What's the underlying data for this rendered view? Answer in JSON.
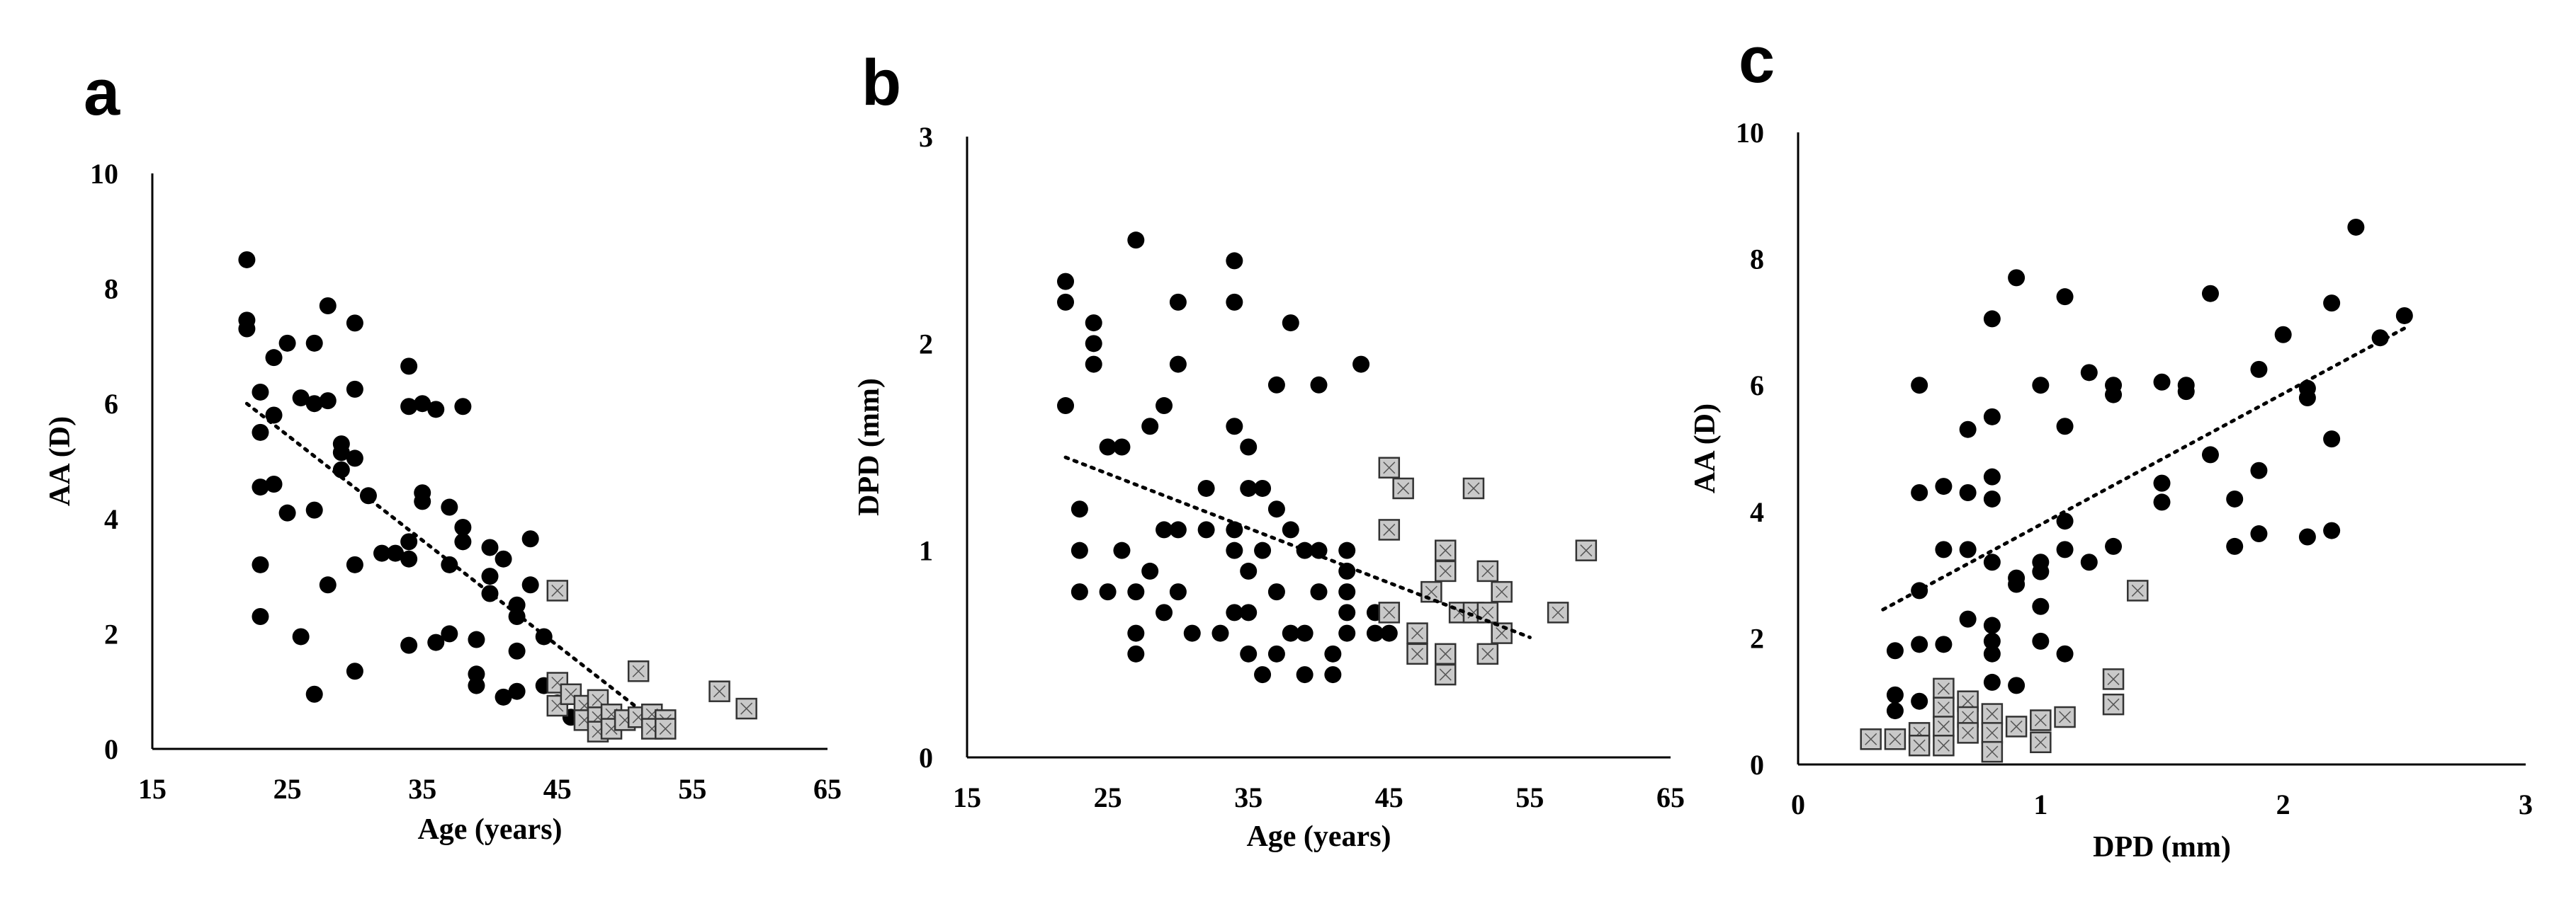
{
  "chart_data": [
    {
      "type": "scatter",
      "panel": "a",
      "xlabel": "Age (years)",
      "ylabel": "AA (D)",
      "xlim": [
        15,
        65
      ],
      "ylim": [
        0,
        10
      ],
      "xticks": [
        15,
        25,
        35,
        45,
        55,
        65
      ],
      "yticks": [
        0,
        2,
        4,
        6,
        8,
        10
      ],
      "series": [
        {
          "name": "circles",
          "marker": "circle",
          "points": [
            [
              22,
              8.5
            ],
            [
              22,
              7.45
            ],
            [
              22,
              7.3
            ],
            [
              23,
              6.2
            ],
            [
              23,
              5.5
            ],
            [
              23,
              4.55
            ],
            [
              23,
              3.2
            ],
            [
              23,
              2.3
            ],
            [
              24,
              6.8
            ],
            [
              24,
              5.8
            ],
            [
              24,
              4.6
            ],
            [
              25,
              7.05
            ],
            [
              25,
              4.1
            ],
            [
              26,
              6.1
            ],
            [
              26,
              1.95
            ],
            [
              27,
              7.05
            ],
            [
              27,
              6.0
            ],
            [
              27,
              4.15
            ],
            [
              27,
              0.95
            ],
            [
              28,
              7.7
            ],
            [
              28,
              6.05
            ],
            [
              28,
              2.85
            ],
            [
              29,
              5.3
            ],
            [
              29,
              5.15
            ],
            [
              29,
              4.85
            ],
            [
              30,
              7.4
            ],
            [
              30,
              6.25
            ],
            [
              30,
              5.05
            ],
            [
              30,
              3.2
            ],
            [
              30,
              1.35
            ],
            [
              31,
              4.4
            ],
            [
              32,
              3.4
            ],
            [
              33,
              3.4
            ],
            [
              34,
              6.65
            ],
            [
              34,
              5.95
            ],
            [
              34,
              3.6
            ],
            [
              34,
              3.3
            ],
            [
              34,
              1.8
            ],
            [
              35,
              6.0
            ],
            [
              35,
              4.45
            ],
            [
              35,
              4.3
            ],
            [
              36,
              5.9
            ],
            [
              36,
              1.85
            ],
            [
              37,
              4.2
            ],
            [
              37,
              3.2
            ],
            [
              37,
              2.0
            ],
            [
              38,
              5.95
            ],
            [
              38,
              3.85
            ],
            [
              38,
              3.6
            ],
            [
              39,
              1.9
            ],
            [
              39,
              1.3
            ],
            [
              39,
              1.1
            ],
            [
              40,
              3.5
            ],
            [
              40,
              3.0
            ],
            [
              40,
              2.7
            ],
            [
              41,
              3.3
            ],
            [
              41,
              0.9
            ],
            [
              42,
              2.5
            ],
            [
              42,
              2.3
            ],
            [
              42,
              1.7
            ],
            [
              42,
              1.0
            ],
            [
              43,
              3.65
            ],
            [
              43,
              2.85
            ],
            [
              44,
              1.95
            ],
            [
              44,
              1.1
            ],
            [
              45,
              0.8
            ],
            [
              46,
              0.55
            ]
          ]
        },
        {
          "name": "squares",
          "marker": "square",
          "points": [
            [
              45,
              2.75
            ],
            [
              45,
              1.15
            ],
            [
              45,
              0.75
            ],
            [
              46,
              0.95
            ],
            [
              47,
              0.75
            ],
            [
              47,
              0.5
            ],
            [
              48,
              0.85
            ],
            [
              48,
              0.55
            ],
            [
              48,
              0.3
            ],
            [
              49,
              0.6
            ],
            [
              49,
              0.35
            ],
            [
              50,
              0.5
            ],
            [
              51,
              1.35
            ],
            [
              51,
              0.55
            ],
            [
              52,
              0.6
            ],
            [
              52,
              0.35
            ],
            [
              53,
              0.5
            ],
            [
              53,
              0.35
            ],
            [
              57,
              1.0
            ],
            [
              59,
              0.7
            ]
          ]
        }
      ],
      "trendline": {
        "style": "dotted",
        "from": [
          22,
          6.0
        ],
        "to": [
          51,
          0.7
        ]
      }
    },
    {
      "type": "scatter",
      "panel": "b",
      "xlabel": "Age (years)",
      "ylabel": "DPD (mm)",
      "xlim": [
        15,
        65
      ],
      "ylim": [
        0,
        3
      ],
      "xticks": [
        15,
        25,
        35,
        45,
        55,
        65
      ],
      "yticks": [
        0,
        1,
        2,
        3
      ],
      "series": [
        {
          "name": "circles",
          "marker": "circle",
          "points": [
            [
              22,
              2.3
            ],
            [
              22,
              2.2
            ],
            [
              22,
              1.7
            ],
            [
              23,
              1.2
            ],
            [
              23,
              1.0
            ],
            [
              23,
              0.8
            ],
            [
              24,
              2.1
            ],
            [
              24,
              2.0
            ],
            [
              24,
              1.9
            ],
            [
              25,
              1.5
            ],
            [
              25,
              0.8
            ],
            [
              26,
              1.5
            ],
            [
              26,
              1.0
            ],
            [
              27,
              2.5
            ],
            [
              27,
              0.8
            ],
            [
              27,
              0.6
            ],
            [
              27,
              0.5
            ],
            [
              28,
              1.6
            ],
            [
              28,
              0.9
            ],
            [
              29,
              1.7
            ],
            [
              29,
              1.1
            ],
            [
              29,
              0.7
            ],
            [
              30,
              2.2
            ],
            [
              30,
              1.9
            ],
            [
              30,
              1.1
            ],
            [
              30,
              0.8
            ],
            [
              31,
              0.6
            ],
            [
              32,
              1.3
            ],
            [
              32,
              1.1
            ],
            [
              33,
              0.6
            ],
            [
              34,
              2.4
            ],
            [
              34,
              2.2
            ],
            [
              34,
              1.6
            ],
            [
              34,
              1.1
            ],
            [
              34,
              1.0
            ],
            [
              34,
              0.7
            ],
            [
              35,
              1.5
            ],
            [
              35,
              1.3
            ],
            [
              35,
              0.9
            ],
            [
              35,
              0.7
            ],
            [
              35,
              0.5
            ],
            [
              36,
              1.3
            ],
            [
              36,
              1.0
            ],
            [
              36,
              0.4
            ],
            [
              37,
              1.8
            ],
            [
              37,
              1.2
            ],
            [
              37,
              0.8
            ],
            [
              37,
              0.5
            ],
            [
              38,
              2.1
            ],
            [
              38,
              1.1
            ],
            [
              38,
              0.6
            ],
            [
              39,
              1.0
            ],
            [
              39,
              0.6
            ],
            [
              39,
              0.4
            ],
            [
              40,
              1.8
            ],
            [
              40,
              1.0
            ],
            [
              40,
              0.8
            ],
            [
              41,
              0.5
            ],
            [
              41,
              0.4
            ],
            [
              42,
              1.0
            ],
            [
              42,
              0.9
            ],
            [
              42,
              0.8
            ],
            [
              42,
              0.7
            ],
            [
              42,
              0.6
            ],
            [
              43,
              1.9
            ],
            [
              44,
              0.7
            ],
            [
              44,
              0.6
            ],
            [
              45,
              0.6
            ]
          ]
        },
        {
          "name": "squares",
          "marker": "square",
          "points": [
            [
              45,
              1.4
            ],
            [
              45,
              1.1
            ],
            [
              45,
              0.7
            ],
            [
              46,
              1.3
            ],
            [
              47,
              0.6
            ],
            [
              47,
              0.5
            ],
            [
              48,
              0.8
            ],
            [
              49,
              1.0
            ],
            [
              49,
              0.9
            ],
            [
              49,
              0.5
            ],
            [
              49,
              0.4
            ],
            [
              50,
              0.7
            ],
            [
              51,
              1.3
            ],
            [
              51,
              0.7
            ],
            [
              52,
              0.9
            ],
            [
              52,
              0.7
            ],
            [
              52,
              0.5
            ],
            [
              53,
              0.8
            ],
            [
              53,
              0.6
            ],
            [
              57,
              0.7
            ],
            [
              59,
              1.0
            ]
          ]
        }
      ],
      "trendline": {
        "style": "dotted",
        "from": [
          22,
          1.45
        ],
        "to": [
          55,
          0.58
        ]
      }
    },
    {
      "type": "scatter",
      "panel": "c",
      "xlabel": "DPD (mm)",
      "ylabel": "AA (D)",
      "xlim": [
        0,
        3
      ],
      "ylim": [
        0,
        10
      ],
      "xticks": [
        0,
        1,
        2,
        3
      ],
      "yticks": [
        0,
        2,
        4,
        6,
        8,
        10
      ],
      "series": [
        {
          "name": "circles",
          "marker": "circle",
          "points": [
            [
              0.4,
              1.1
            ],
            [
              0.4,
              0.85
            ],
            [
              0.4,
              1.8
            ],
            [
              0.5,
              6.0
            ],
            [
              0.5,
              4.3
            ],
            [
              0.5,
              2.75
            ],
            [
              0.5,
              1.9
            ],
            [
              0.5,
              1.0
            ],
            [
              0.6,
              4.4
            ],
            [
              0.6,
              3.4
            ],
            [
              0.6,
              1.9
            ],
            [
              0.6,
              1.0
            ],
            [
              0.7,
              5.3
            ],
            [
              0.7,
              4.3
            ],
            [
              0.7,
              3.4
            ],
            [
              0.7,
              2.3
            ],
            [
              0.7,
              1.0
            ],
            [
              0.8,
              7.05
            ],
            [
              0.8,
              5.5
            ],
            [
              0.8,
              4.55
            ],
            [
              0.8,
              4.2
            ],
            [
              0.8,
              3.2
            ],
            [
              0.8,
              2.2
            ],
            [
              0.8,
              1.95
            ],
            [
              0.8,
              1.75
            ],
            [
              0.8,
              1.3
            ],
            [
              0.9,
              7.7
            ],
            [
              0.9,
              2.95
            ],
            [
              0.9,
              2.85
            ],
            [
              0.9,
              1.25
            ],
            [
              1.0,
              6.0
            ],
            [
              1.0,
              3.2
            ],
            [
              1.0,
              3.05
            ],
            [
              1.0,
              2.5
            ],
            [
              1.0,
              1.95
            ],
            [
              1.1,
              7.4
            ],
            [
              1.1,
              5.35
            ],
            [
              1.1,
              3.85
            ],
            [
              1.1,
              3.4
            ],
            [
              1.1,
              1.75
            ],
            [
              1.2,
              6.2
            ],
            [
              1.2,
              3.2
            ],
            [
              1.3,
              6.0
            ],
            [
              1.3,
              5.85
            ],
            [
              1.3,
              3.45
            ],
            [
              1.5,
              6.05
            ],
            [
              1.5,
              4.45
            ],
            [
              1.5,
              4.15
            ],
            [
              1.6,
              6.0
            ],
            [
              1.6,
              5.9
            ],
            [
              1.7,
              7.45
            ],
            [
              1.7,
              4.9
            ],
            [
              1.8,
              4.2
            ],
            [
              1.8,
              3.45
            ],
            [
              1.9,
              6.25
            ],
            [
              1.9,
              4.65
            ],
            [
              1.9,
              3.65
            ],
            [
              2.0,
              6.8
            ],
            [
              2.1,
              5.95
            ],
            [
              2.1,
              5.8
            ],
            [
              2.1,
              3.6
            ],
            [
              2.2,
              7.3
            ],
            [
              2.2,
              5.15
            ],
            [
              2.2,
              3.7
            ],
            [
              2.3,
              8.5
            ],
            [
              2.4,
              6.75
            ],
            [
              2.5,
              7.1
            ]
          ]
        },
        {
          "name": "squares",
          "marker": "square",
          "points": [
            [
              0.3,
              0.4
            ],
            [
              0.4,
              0.4
            ],
            [
              0.5,
              0.5
            ],
            [
              0.5,
              0.3
            ],
            [
              0.6,
              1.2
            ],
            [
              0.6,
              0.9
            ],
            [
              0.6,
              0.6
            ],
            [
              0.6,
              0.3
            ],
            [
              0.7,
              1.0
            ],
            [
              0.7,
              0.75
            ],
            [
              0.7,
              0.5
            ],
            [
              0.8,
              0.8
            ],
            [
              0.8,
              0.5
            ],
            [
              0.8,
              0.2
            ],
            [
              0.9,
              0.6
            ],
            [
              1.0,
              0.7
            ],
            [
              1.0,
              0.35
            ],
            [
              1.1,
              0.75
            ],
            [
              1.3,
              1.35
            ],
            [
              1.3,
              0.95
            ],
            [
              1.4,
              2.75
            ]
          ]
        }
      ],
      "trendline": {
        "style": "dotted",
        "from": [
          0.35,
          2.45
        ],
        "to": [
          2.5,
          6.9
        ]
      }
    }
  ]
}
